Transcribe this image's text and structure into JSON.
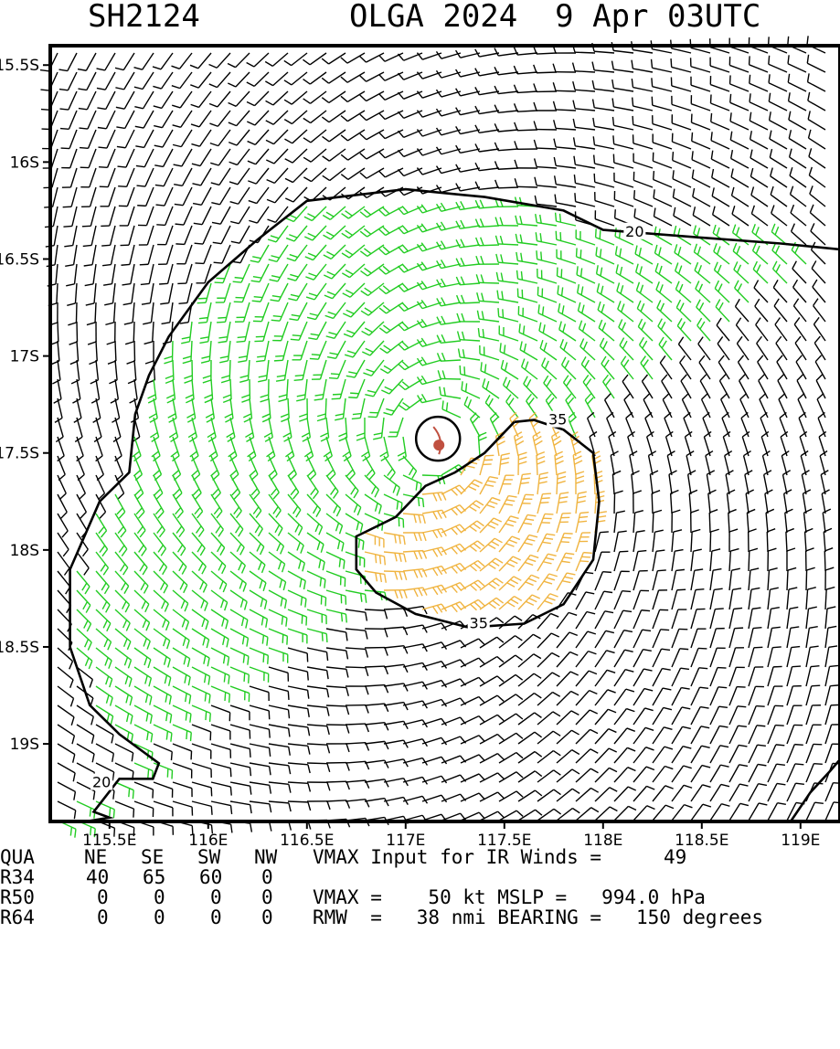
{
  "header": {
    "id": "SH2124",
    "storm": "OLGA 2024  9 Apr 03UTC"
  },
  "colors": {
    "weak_barbs": "#000000",
    "gale_barbs": "#22cc22",
    "storm_barbs": "#f0b440",
    "contour": "#000000",
    "center_marker": "#c05040"
  },
  "chart_data": {
    "type": "wind barb map",
    "title": "OLGA 2024  9 Apr 03UTC",
    "xlim": [
      115.2,
      119.2
    ],
    "ylim": [
      -19.4,
      -15.4
    ],
    "x_ticks": [
      115.5,
      116,
      116.5,
      117,
      117.5,
      118,
      118.5,
      119
    ],
    "x_tick_labels": [
      "115.5E",
      "116E",
      "116.5E",
      "117E",
      "117.5E",
      "118E",
      "118.5E",
      "119E"
    ],
    "y_ticks": [
      -15.5,
      -16,
      -16.5,
      -17,
      -17.5,
      -18,
      -18.5,
      -19
    ],
    "y_tick_labels": [
      "15.5S",
      "16S",
      "16.5S",
      "17S",
      "17.5S",
      "18S",
      "18.5S",
      "19S"
    ],
    "grid": false,
    "center": {
      "lon": 117.15,
      "lat": -17.45
    },
    "contours": [
      {
        "level": 20,
        "label": "20",
        "points": [
          [
            119.2,
            -16.45
          ],
          [
            118.9,
            -16.42
          ],
          [
            118.5,
            -16.39
          ],
          [
            118.0,
            -16.35
          ],
          [
            117.8,
            -16.25
          ],
          [
            117.4,
            -16.18
          ],
          [
            117.0,
            -16.14
          ],
          [
            116.5,
            -16.2
          ],
          [
            116.25,
            -16.4
          ],
          [
            116.0,
            -16.62
          ],
          [
            115.8,
            -16.9
          ],
          [
            115.7,
            -17.1
          ],
          [
            115.63,
            -17.3
          ],
          [
            115.6,
            -17.6
          ],
          [
            115.45,
            -17.75
          ],
          [
            115.3,
            -18.1
          ],
          [
            115.3,
            -18.5
          ],
          [
            115.4,
            -18.8
          ],
          [
            115.55,
            -18.95
          ],
          [
            115.75,
            -19.1
          ],
          [
            115.72,
            -19.18
          ],
          [
            115.55,
            -19.18
          ],
          [
            115.42,
            -19.35
          ],
          [
            115.5,
            -19.38
          ],
          [
            115.38,
            -19.4
          ]
        ]
      },
      {
        "level": 20,
        "label": "",
        "points": [
          [
            118.95,
            -19.4
          ],
          [
            119.05,
            -19.25
          ],
          [
            119.15,
            -19.14
          ],
          [
            119.2,
            -19.08
          ]
        ]
      },
      {
        "level": 35,
        "label": "35",
        "points": [
          [
            117.55,
            -17.34
          ],
          [
            117.4,
            -17.5
          ],
          [
            117.25,
            -17.6
          ],
          [
            117.1,
            -17.67
          ],
          [
            116.95,
            -17.83
          ],
          [
            116.75,
            -17.93
          ],
          [
            116.75,
            -18.1
          ],
          [
            116.85,
            -18.22
          ],
          [
            117.05,
            -18.33
          ],
          [
            117.32,
            -18.4
          ],
          [
            117.6,
            -18.38
          ],
          [
            117.8,
            -18.28
          ],
          [
            117.95,
            -18.05
          ],
          [
            117.98,
            -17.75
          ],
          [
            117.95,
            -17.5
          ],
          [
            117.8,
            -17.38
          ],
          [
            117.65,
            -17.33
          ],
          [
            117.55,
            -17.34
          ]
        ]
      }
    ],
    "contour_labels": [
      {
        "text": "20",
        "lon": 118.16,
        "lat": -16.36
      },
      {
        "text": "20",
        "lon": 115.46,
        "lat": -19.2
      },
      {
        "text": "35",
        "lon": 117.77,
        "lat": -17.33
      },
      {
        "text": "35",
        "lon": 117.37,
        "lat": -18.38
      }
    ],
    "wind_thresholds_kt": [
      20,
      35
    ]
  },
  "info": {
    "columns": [
      "QUA",
      "NE",
      "SE",
      "SW",
      "NW"
    ],
    "vmax_input_label": "VMAX Input for IR Winds =",
    "vmax_input_value": "49",
    "rows": [
      {
        "label": "R34",
        "values": [
          "40",
          "65",
          "60",
          "0"
        ]
      },
      {
        "label": "R50",
        "values": [
          "0",
          "0",
          "0",
          "0"
        ]
      },
      {
        "label": "R64",
        "values": [
          "0",
          "0",
          "0",
          "0"
        ]
      }
    ],
    "vmax_line": "VMAX =    50 kt MSLP =   994.0 hPa",
    "rmw_line": "RMW  =   38 nmi BEARING =   150 degrees"
  }
}
